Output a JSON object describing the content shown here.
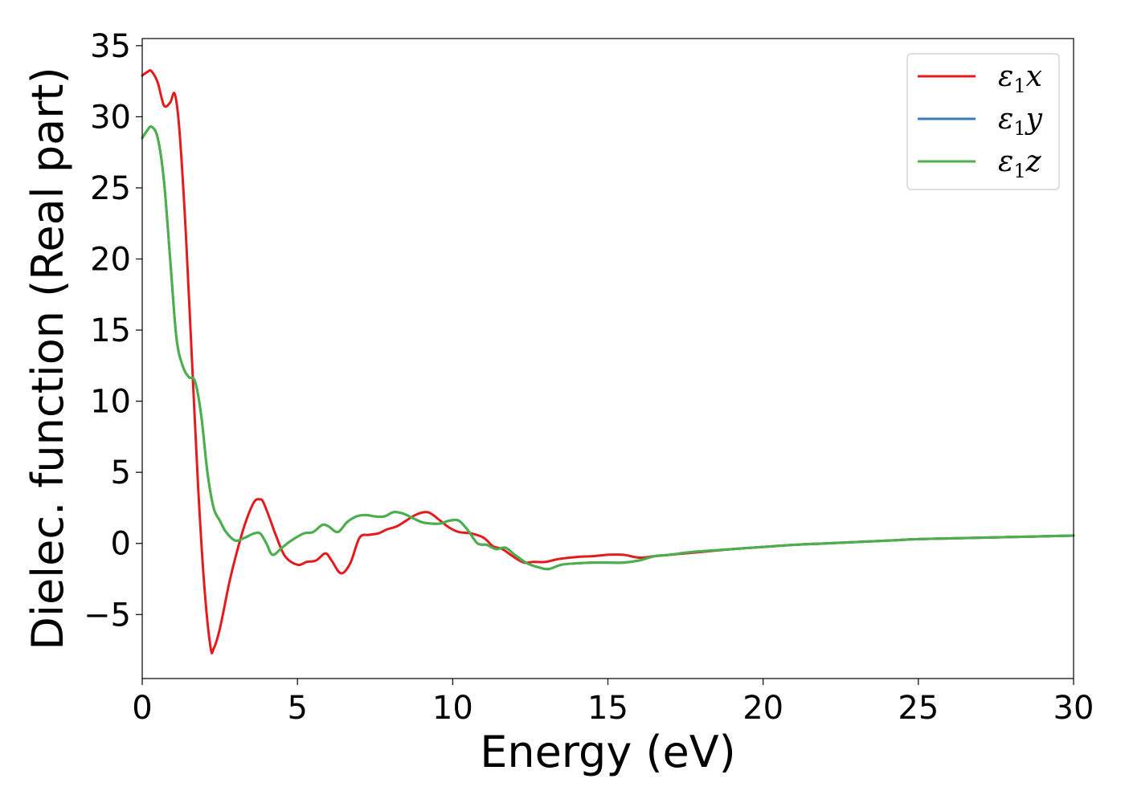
{
  "chart_data": {
    "type": "line",
    "title": "",
    "xlabel": "Energy (eV)",
    "ylabel": "Dielec. function (Real part)",
    "xlim": [
      0,
      30
    ],
    "ylim": [
      -9.5,
      35.5
    ],
    "xticks": [
      0,
      5,
      10,
      15,
      20,
      25,
      30
    ],
    "xtick_labels": [
      "0",
      "5",
      "10",
      "15",
      "20",
      "25",
      "30"
    ],
    "yticks": [
      -5,
      0,
      5,
      10,
      15,
      20,
      25,
      30,
      35
    ],
    "ytick_labels": [
      "−5",
      "0",
      "5",
      "10",
      "15",
      "20",
      "25",
      "30",
      "35"
    ],
    "grid": false,
    "legend_position": "top-right",
    "series": [
      {
        "name": "ε1x",
        "label_main": "ε",
        "label_sub": "1",
        "label_var": "x",
        "color": "#e41a1c",
        "x": [
          0,
          0.2,
          0.3,
          0.5,
          0.7,
          0.9,
          1.05,
          1.2,
          1.4,
          1.6,
          1.8,
          2.0,
          2.2,
          2.3,
          2.5,
          2.8,
          3.0,
          3.3,
          3.6,
          3.8,
          3.9,
          4.1,
          4.3,
          4.6,
          5.0,
          5.3,
          5.6,
          5.9,
          6.1,
          6.4,
          6.7,
          7.0,
          7.3,
          7.6,
          7.9,
          8.2,
          8.5,
          8.8,
          9.1,
          9.3,
          9.6,
          9.9,
          10.2,
          10.6,
          11.0,
          11.3,
          11.6,
          12.0,
          12.3,
          12.6,
          13.0,
          13.4,
          14.0,
          14.5,
          15.0,
          15.5,
          16.0,
          16.5,
          17.0,
          17.5,
          18.0,
          19.0,
          20.0,
          21.0,
          22.0,
          23.0,
          24.0,
          25.0,
          26.0,
          27.0,
          28.0,
          29.0,
          30.0
        ],
        "y": [
          32.9,
          33.2,
          33.2,
          32.4,
          30.8,
          31.0,
          31.6,
          29.0,
          22.0,
          13.0,
          4.0,
          -3.0,
          -7.3,
          -7.4,
          -6.0,
          -2.8,
          -1.0,
          1.3,
          2.9,
          3.1,
          2.9,
          1.8,
          0.6,
          -0.9,
          -1.5,
          -1.3,
          -1.2,
          -0.7,
          -1.2,
          -2.1,
          -1.4,
          0.4,
          0.6,
          0.7,
          1.0,
          1.2,
          1.6,
          2.0,
          2.2,
          2.1,
          1.6,
          1.1,
          0.8,
          0.7,
          0.4,
          -0.2,
          -0.4,
          -1.0,
          -1.35,
          -1.3,
          -1.3,
          -1.1,
          -0.95,
          -0.9,
          -0.8,
          -0.8,
          -1.0,
          -0.9,
          -0.8,
          -0.7,
          -0.6,
          -0.4,
          -0.25,
          -0.1,
          0.0,
          0.1,
          0.2,
          0.3,
          0.35,
          0.4,
          0.45,
          0.5,
          0.55
        ]
      },
      {
        "name": "ε1y",
        "label_main": "ε",
        "label_sub": "1",
        "label_var": "y",
        "color": "#377eb8",
        "x": [
          0,
          0.15,
          0.3,
          0.5,
          0.7,
          0.9,
          1.1,
          1.3,
          1.5,
          1.7,
          1.9,
          2.1,
          2.3,
          2.5,
          2.7,
          3.0,
          3.3,
          3.6,
          3.8,
          4.0,
          4.2,
          4.5,
          4.8,
          5.2,
          5.5,
          5.8,
          6.0,
          6.3,
          6.6,
          6.9,
          7.2,
          7.5,
          7.8,
          8.1,
          8.4,
          8.7,
          9.0,
          9.3,
          9.6,
          9.9,
          10.2,
          10.5,
          10.8,
          11.1,
          11.4,
          11.7,
          12.0,
          12.4,
          12.8,
          13.1,
          13.5,
          14.0,
          14.5,
          15.0,
          15.5,
          16.0,
          16.5,
          17.0,
          17.5,
          18.0,
          19.0,
          20.0,
          21.0,
          22.0,
          23.0,
          24.0,
          25.0,
          26.0,
          27.0,
          28.0,
          29.0,
          30.0
        ],
        "y": [
          28.5,
          29.0,
          29.3,
          28.5,
          25.5,
          20.0,
          14.5,
          12.5,
          11.7,
          11.4,
          9.0,
          5.0,
          2.5,
          1.6,
          0.8,
          0.2,
          0.4,
          0.7,
          0.7,
          0.0,
          -0.8,
          -0.3,
          0.2,
          0.7,
          0.8,
          1.3,
          1.2,
          0.8,
          1.5,
          1.9,
          2.0,
          1.9,
          1.9,
          2.2,
          2.1,
          1.8,
          1.5,
          1.4,
          1.4,
          1.6,
          1.6,
          0.9,
          0.0,
          -0.1,
          -0.4,
          -0.3,
          -0.8,
          -1.4,
          -1.7,
          -1.8,
          -1.5,
          -1.4,
          -1.35,
          -1.35,
          -1.35,
          -1.2,
          -0.9,
          -0.8,
          -0.65,
          -0.55,
          -0.4,
          -0.25,
          -0.1,
          0.0,
          0.1,
          0.2,
          0.3,
          0.35,
          0.4,
          0.45,
          0.5,
          0.55
        ]
      },
      {
        "name": "ε1z",
        "label_main": "ε",
        "label_sub": "1",
        "label_var": "z",
        "color": "#4daf4a",
        "x": [
          0,
          0.15,
          0.3,
          0.5,
          0.7,
          0.9,
          1.1,
          1.3,
          1.5,
          1.7,
          1.9,
          2.1,
          2.3,
          2.5,
          2.7,
          3.0,
          3.3,
          3.6,
          3.8,
          4.0,
          4.2,
          4.5,
          4.8,
          5.2,
          5.5,
          5.8,
          6.0,
          6.3,
          6.6,
          6.9,
          7.2,
          7.5,
          7.8,
          8.1,
          8.4,
          8.7,
          9.0,
          9.3,
          9.6,
          9.9,
          10.2,
          10.5,
          10.8,
          11.1,
          11.4,
          11.7,
          12.0,
          12.4,
          12.8,
          13.1,
          13.5,
          14.0,
          14.5,
          15.0,
          15.5,
          16.0,
          16.5,
          17.0,
          17.5,
          18.0,
          19.0,
          20.0,
          21.0,
          22.0,
          23.0,
          24.0,
          25.0,
          26.0,
          27.0,
          28.0,
          29.0,
          30.0
        ],
        "y": [
          28.5,
          29.0,
          29.3,
          28.5,
          25.5,
          20.0,
          14.5,
          12.5,
          11.7,
          11.4,
          9.0,
          5.0,
          2.5,
          1.6,
          0.8,
          0.2,
          0.4,
          0.7,
          0.7,
          0.0,
          -0.8,
          -0.3,
          0.2,
          0.7,
          0.8,
          1.3,
          1.2,
          0.8,
          1.5,
          1.9,
          2.0,
          1.9,
          1.9,
          2.2,
          2.1,
          1.8,
          1.5,
          1.4,
          1.4,
          1.6,
          1.6,
          0.9,
          0.0,
          -0.1,
          -0.4,
          -0.3,
          -0.8,
          -1.4,
          -1.7,
          -1.8,
          -1.5,
          -1.4,
          -1.35,
          -1.35,
          -1.35,
          -1.2,
          -0.9,
          -0.8,
          -0.65,
          -0.55,
          -0.4,
          -0.25,
          -0.1,
          0.0,
          0.1,
          0.2,
          0.3,
          0.35,
          0.4,
          0.45,
          0.5,
          0.55
        ]
      }
    ]
  }
}
